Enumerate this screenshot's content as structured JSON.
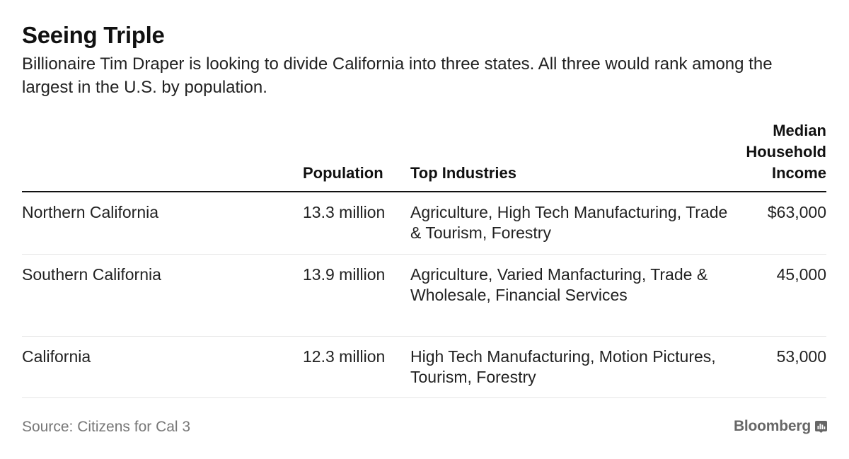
{
  "header": {
    "title": "Seeing Triple",
    "subtitle": "Billionaire Tim Draper is looking to divide California into three states. All three would rank among the largest in the U.S. by population."
  },
  "chart_data": {
    "type": "table",
    "columns": [
      "",
      "Population",
      "Top Industries",
      "Median Household Income"
    ],
    "rows": [
      {
        "region": "Northern California",
        "population": "13.3 million",
        "industries": "Agriculture, High Tech Manufacturing, Trade & Tourism, Forestry",
        "income": "$63,000"
      },
      {
        "region": "Southern California",
        "population": "13.9 million",
        "industries": "Agriculture, Varied Manfacturing, Trade & Wholesale, Financial Services",
        "income": "45,000"
      },
      {
        "region": "California",
        "population": "12.3 million",
        "industries": "High Tech Manufacturing, Motion Pictures, Tourism, Forestry",
        "income": "53,000"
      }
    ]
  },
  "table_headers": {
    "population": "Population",
    "industries": "Top Industries",
    "income_line1": "Median",
    "income_line2": "Household",
    "income_line3": "Income"
  },
  "footer": {
    "source": "Source: Citizens for Cal 3",
    "brand": "Bloomberg",
    "brand_icon": "bar-chart-icon"
  }
}
